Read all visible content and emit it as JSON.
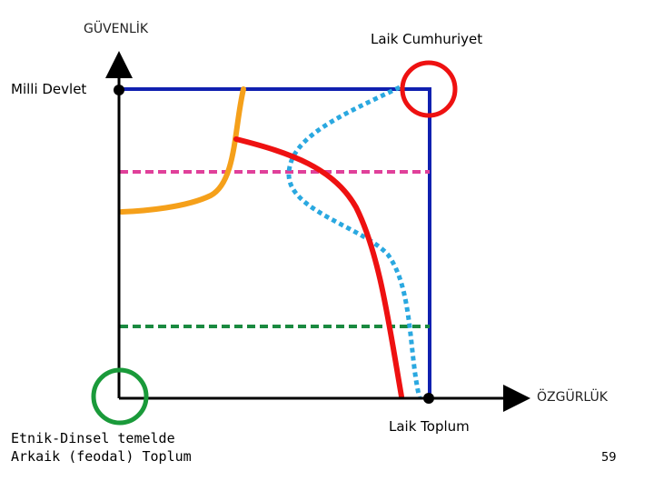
{
  "labels": {
    "y_axis": "GÜVENLİK",
    "x_axis": "ÖZGÜRLÜK",
    "top_right": "Laik Cumhuriyet",
    "left_top": "Milli Devlet",
    "bottom_left_line1": "Etnik-Dinsel temelde",
    "bottom_left_line2": "Arkaik (feodal) Toplum",
    "bottom_right": "Laik Toplum",
    "page_number": "59"
  },
  "colors": {
    "frame": "#1020b0",
    "axis": "#000000",
    "red": "#ee1111",
    "orange": "#f5a01a",
    "blue_dotted": "#2aa8e0",
    "pink_dashed": "#e0409a",
    "green_dashed": "#1a8a40",
    "green_circle": "#1a9a3a"
  }
}
